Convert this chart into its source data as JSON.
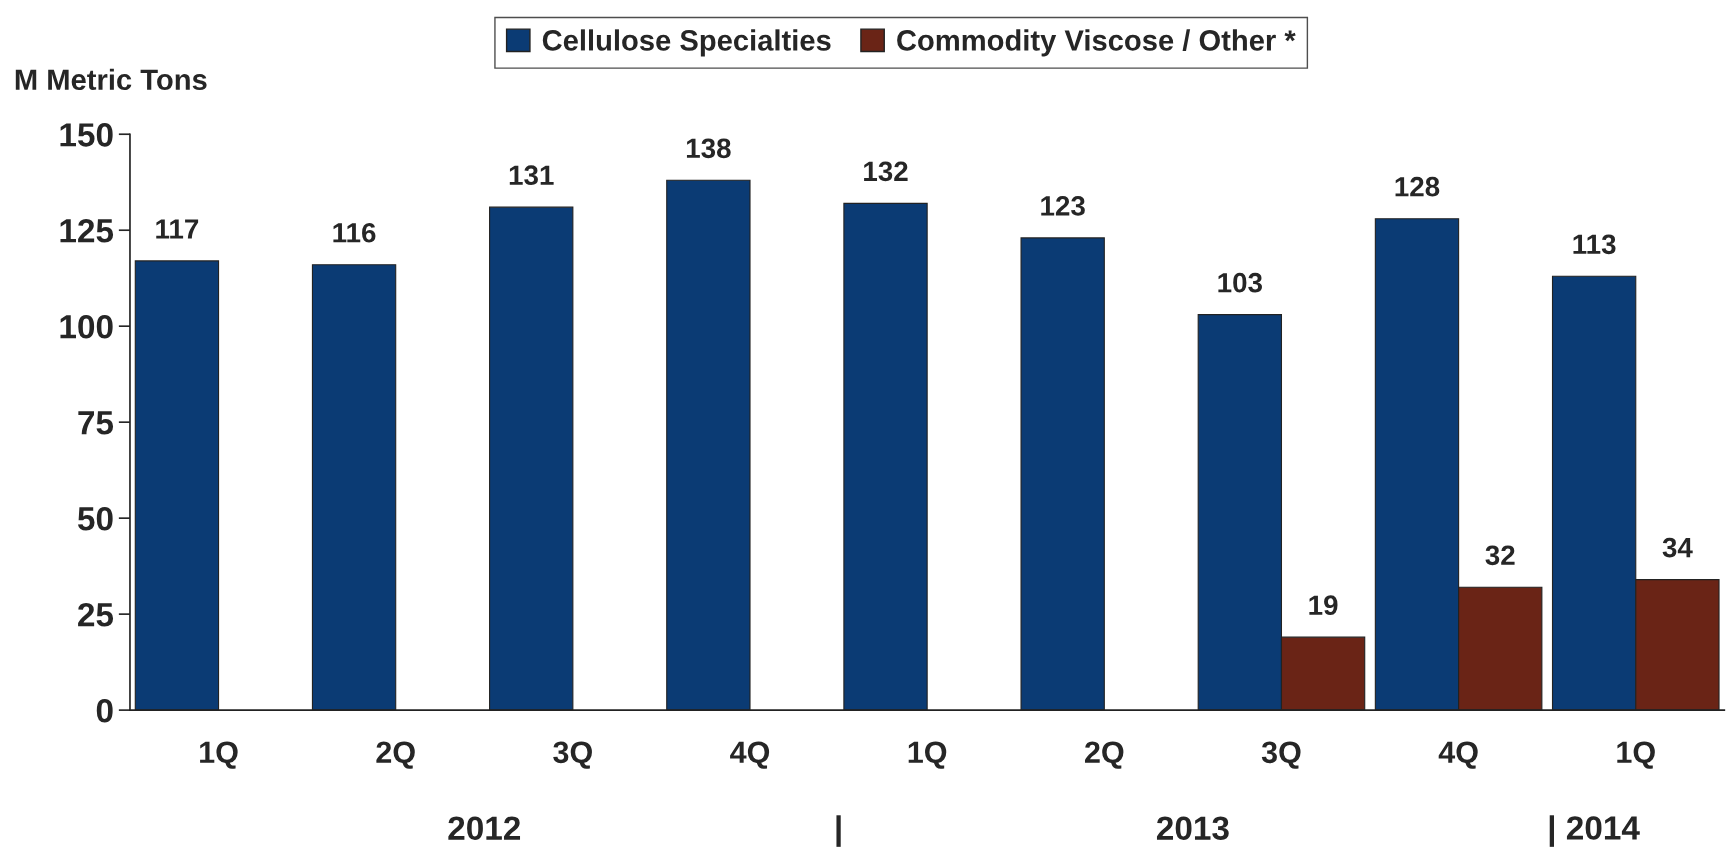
{
  "chart_data": {
    "type": "bar",
    "ylabel": "M Metric Tons",
    "categories": [
      "1Q",
      "2Q",
      "3Q",
      "4Q",
      "1Q",
      "2Q",
      "3Q",
      "4Q",
      "1Q"
    ],
    "series": [
      {
        "name": "Cellulose Specialties",
        "color": "#0b3b74",
        "values": [
          117,
          116,
          131,
          138,
          132,
          123,
          103,
          128,
          113
        ]
      },
      {
        "name": "Commodity Viscose / Other *",
        "color": "#6a2416",
        "values": [
          null,
          null,
          null,
          null,
          null,
          null,
          19,
          32,
          34
        ]
      }
    ],
    "ylim": [
      0,
      150
    ],
    "yticks": [
      0,
      25,
      50,
      75,
      100,
      125,
      150
    ],
    "data_labels": true,
    "legend": "top",
    "grid": false,
    "annotations": [
      "2012",
      "|",
      "2013",
      "| 2014"
    ]
  }
}
